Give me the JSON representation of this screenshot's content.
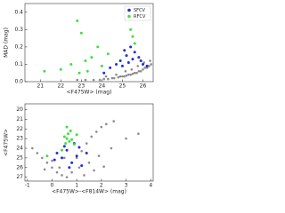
{
  "chart_data": [
    {
      "type": "scatter",
      "xlabel": "<F475W> (mag)",
      "ylabel": "MAD (mag)",
      "xlim": [
        20.25,
        26.5
      ],
      "xticks": [
        21,
        22,
        23,
        24,
        25,
        26
      ],
      "ylim": [
        0,
        0.45
      ],
      "yticks": [
        {
          "value": 0,
          "label": "0.0"
        },
        0.1,
        0.2,
        0.3,
        0.4
      ],
      "legend": "upper right",
      "series": [
        {
          "color": "#8c8c8c",
          "x": [
            23.6,
            23.9,
            24.1,
            24.3,
            24.5,
            24.6,
            24.8,
            24.9,
            25.0,
            25.1,
            25.2,
            25.3,
            25.4,
            25.5,
            25.6,
            25.7,
            25.8,
            25.9,
            26.0,
            26.1,
            26.2,
            26.3,
            26.4,
            24.2,
            24.7,
            25.15,
            25.45,
            25.75,
            26.05,
            26.35,
            22.8,
            23.2
          ],
          "y": [
            0.01,
            0.01,
            0.015,
            0.015,
            0.02,
            0.02,
            0.025,
            0.03,
            0.03,
            0.03,
            0.035,
            0.04,
            0.04,
            0.045,
            0.05,
            0.05,
            0.06,
            0.06,
            0.07,
            0.08,
            0.08,
            0.09,
            0.1,
            0.03,
            0.04,
            0.06,
            0.07,
            0.09,
            0.11,
            0.12,
            0.01,
            0.01
          ]
        },
        {
          "name": "SFCV",
          "color": "#1f2fd6",
          "x": [
            24.1,
            24.4,
            24.7,
            24.9,
            25.0,
            25.2,
            25.3,
            25.4,
            25.5,
            25.6,
            25.8,
            25.9,
            26.0,
            26.2,
            25.1
          ],
          "y": [
            0.05,
            0.08,
            0.1,
            0.12,
            0.09,
            0.15,
            0.11,
            0.2,
            0.13,
            0.17,
            0.14,
            0.12,
            0.1,
            0.09,
            0.18
          ]
        },
        {
          "name": "RFCV",
          "color": "#3fe03f",
          "x": [
            21.2,
            22.0,
            22.5,
            22.8,
            23.0,
            23.2,
            23.5,
            23.8,
            24.0,
            24.3,
            25.3,
            25.4,
            25.5,
            25.6,
            23.3,
            22.9
          ],
          "y": [
            0.06,
            0.07,
            0.1,
            0.35,
            0.28,
            0.12,
            0.14,
            0.2,
            0.09,
            0.16,
            0.37,
            0.3,
            0.26,
            0.22,
            0.06,
            0.05
          ]
        }
      ]
    },
    {
      "type": "scatter",
      "xlabel": "<F475W>-<F814W> (mag)",
      "ylabel": "<F475W>",
      "xlim": [
        -1.1,
        4.1
      ],
      "xticks": [
        -1,
        0,
        1,
        2,
        3,
        4
      ],
      "ylim": [
        27.4,
        19.4
      ],
      "yticks": [
        20,
        21,
        22,
        23,
        24,
        25,
        26,
        27
      ],
      "series": [
        {
          "color": "#8c8c8c",
          "x": [
            -0.6,
            -0.4,
            -0.2,
            0,
            0.2,
            0.4,
            -0.3,
            0,
            0.3,
            1.0,
            1.2,
            1.4,
            1.6,
            1.8,
            2.0,
            2.2,
            2.5,
            1.1,
            1.5,
            1.9,
            2.4,
            3.0,
            3.5,
            0.8,
            0.6,
            -0.8,
            1.3,
            1.7,
            2.1,
            0.5
          ],
          "y": [
            24.5,
            25,
            25.5,
            26,
            26.5,
            26.8,
            26.2,
            25.3,
            26,
            25,
            24.3,
            23.5,
            22.8,
            22.3,
            21.8,
            21.5,
            21.2,
            26,
            25.5,
            24.8,
            24,
            23,
            22.5,
            26.5,
            27,
            24,
            26.8,
            26.3,
            25.9,
            25
          ]
        },
        {
          "color": "#1f2fd6",
          "x": [
            0.2,
            0.4,
            0.6,
            0.8,
            1.0,
            1.2,
            0.5,
            0.9,
            1.4,
            0.1,
            0.7,
            1.1
          ],
          "y": [
            24.5,
            25,
            24.2,
            25.5,
            24.8,
            25.8,
            23.8,
            23.5,
            24.5,
            25.2,
            26,
            23.9
          ]
        },
        {
          "color": "#3fe03f",
          "x": [
            0.5,
            0.6,
            0.7,
            0.8,
            0.65,
            0.55,
            0.75,
            0.9,
            -0.2,
            1.0,
            0.4,
            0.6
          ],
          "y": [
            22.8,
            23.0,
            23.3,
            23.1,
            22.5,
            23.5,
            22.2,
            23.6,
            24.8,
            22.6,
            24.2,
            21.8
          ]
        }
      ]
    }
  ]
}
